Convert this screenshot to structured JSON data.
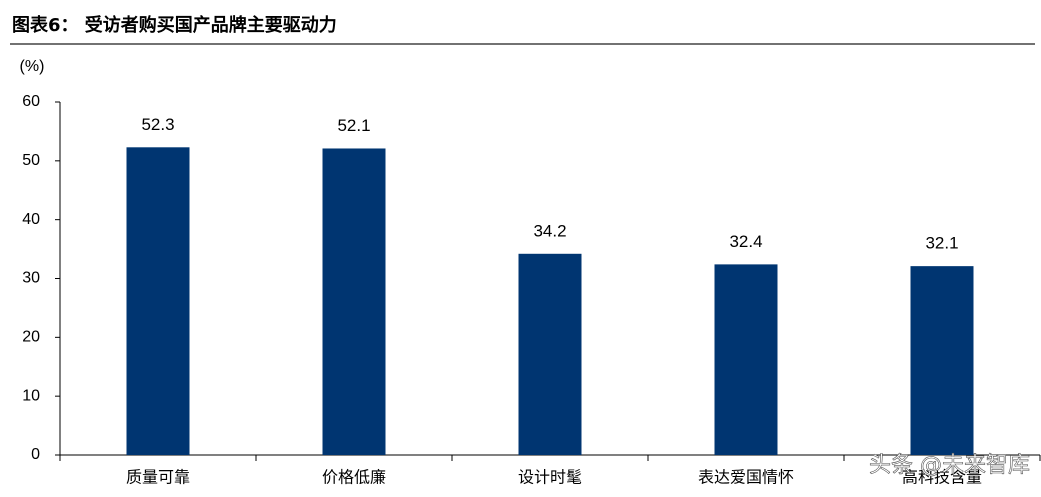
{
  "chart_data": {
    "type": "bar",
    "title": "图表6：  受访者购买国产品牌主要驱动力",
    "y_label": "(%)",
    "categories": [
      "质量可靠",
      "价格低廉",
      "设计时髦",
      "表达爱国情怀",
      "高科技含量"
    ],
    "values": [
      52.3,
      52.1,
      34.2,
      32.4,
      32.1
    ],
    "color": "#003571",
    "ylim": [
      0,
      60
    ],
    "yticks": [
      0,
      10,
      20,
      30,
      40,
      50,
      60
    ],
    "grid": false,
    "watermark": "头条 @未来智库"
  }
}
